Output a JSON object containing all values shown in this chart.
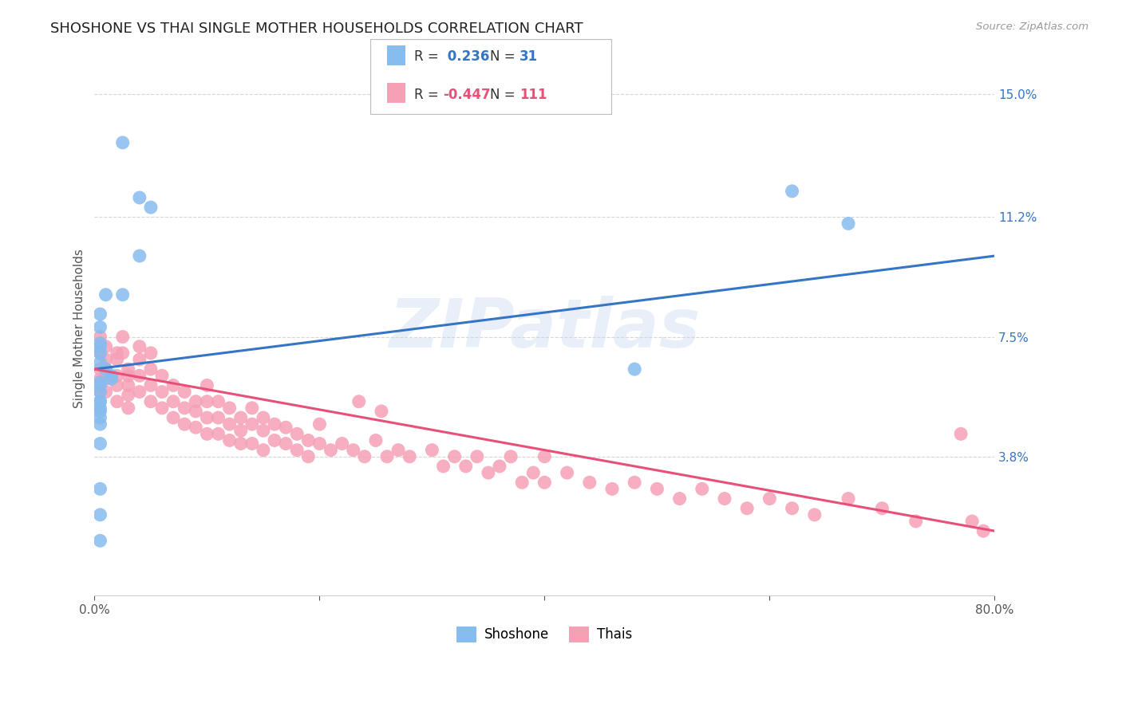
{
  "title": "SHOSHONE VS THAI SINGLE MOTHER HOUSEHOLDS CORRELATION CHART",
  "source": "Source: ZipAtlas.com",
  "ylabel": "Single Mother Households",
  "watermark": "ZIPatlas",
  "xlim": [
    0.0,
    0.8
  ],
  "ylim": [
    -0.005,
    0.16
  ],
  "xticks": [
    0.0,
    0.2,
    0.4,
    0.6,
    0.8
  ],
  "xtick_labels": [
    "0.0%",
    "",
    "",
    "",
    "80.0%"
  ],
  "ytick_positions": [
    0.038,
    0.075,
    0.112,
    0.15
  ],
  "ytick_labels": [
    "3.8%",
    "7.5%",
    "11.2%",
    "15.0%"
  ],
  "shoshone_color": "#87BCEE",
  "thai_color": "#F5A0B5",
  "shoshone_line_color": "#3575C5",
  "thai_line_color": "#E8507A",
  "shoshone_R": 0.236,
  "shoshone_N": 31,
  "thai_R": -0.447,
  "thai_N": 111,
  "background_color": "#FFFFFF",
  "grid_color": "#CCCCCC",
  "title_fontsize": 13,
  "axis_label_fontsize": 11,
  "tick_fontsize": 11,
  "legend_fontsize": 12,
  "blue_line_start_y": 0.065,
  "blue_line_end_y": 0.1,
  "pink_line_start_y": 0.065,
  "pink_line_end_y": 0.015,
  "shoshone_points_x": [
    0.025,
    0.04,
    0.05,
    0.04,
    0.025,
    0.01,
    0.005,
    0.005,
    0.005,
    0.005,
    0.005,
    0.005,
    0.01,
    0.015,
    0.015,
    0.005,
    0.005,
    0.005,
    0.005,
    0.005,
    0.005,
    0.005,
    0.005,
    0.005,
    0.005,
    0.62,
    0.67,
    0.005,
    0.005,
    0.48,
    0.005
  ],
  "shoshone_points_y": [
    0.135,
    0.118,
    0.115,
    0.1,
    0.088,
    0.088,
    0.082,
    0.078,
    0.073,
    0.072,
    0.07,
    0.067,
    0.065,
    0.063,
    0.062,
    0.061,
    0.06,
    0.058,
    0.055,
    0.053,
    0.052,
    0.05,
    0.042,
    0.028,
    0.02,
    0.12,
    0.11,
    0.055,
    0.048,
    0.065,
    0.012
  ],
  "thai_points_x": [
    0.005,
    0.005,
    0.005,
    0.005,
    0.005,
    0.01,
    0.01,
    0.01,
    0.01,
    0.01,
    0.02,
    0.02,
    0.02,
    0.02,
    0.02,
    0.025,
    0.025,
    0.03,
    0.03,
    0.03,
    0.03,
    0.03,
    0.04,
    0.04,
    0.04,
    0.04,
    0.05,
    0.05,
    0.05,
    0.05,
    0.06,
    0.06,
    0.06,
    0.07,
    0.07,
    0.07,
    0.08,
    0.08,
    0.08,
    0.09,
    0.09,
    0.09,
    0.1,
    0.1,
    0.1,
    0.1,
    0.11,
    0.11,
    0.11,
    0.12,
    0.12,
    0.12,
    0.13,
    0.13,
    0.13,
    0.14,
    0.14,
    0.14,
    0.15,
    0.15,
    0.15,
    0.16,
    0.16,
    0.17,
    0.17,
    0.18,
    0.18,
    0.19,
    0.19,
    0.2,
    0.2,
    0.21,
    0.22,
    0.23,
    0.235,
    0.24,
    0.25,
    0.255,
    0.26,
    0.27,
    0.28,
    0.3,
    0.31,
    0.32,
    0.33,
    0.34,
    0.35,
    0.36,
    0.37,
    0.38,
    0.39,
    0.4,
    0.4,
    0.42,
    0.44,
    0.46,
    0.48,
    0.5,
    0.52,
    0.54,
    0.56,
    0.58,
    0.6,
    0.62,
    0.64,
    0.67,
    0.7,
    0.73,
    0.77,
    0.78,
    0.79
  ],
  "thai_points_y": [
    0.075,
    0.07,
    0.065,
    0.062,
    0.058,
    0.072,
    0.068,
    0.065,
    0.062,
    0.058,
    0.07,
    0.068,
    0.063,
    0.06,
    0.055,
    0.075,
    0.07,
    0.065,
    0.063,
    0.06,
    0.057,
    0.053,
    0.072,
    0.068,
    0.063,
    0.058,
    0.07,
    0.065,
    0.06,
    0.055,
    0.063,
    0.058,
    0.053,
    0.06,
    0.055,
    0.05,
    0.058,
    0.053,
    0.048,
    0.055,
    0.052,
    0.047,
    0.06,
    0.055,
    0.05,
    0.045,
    0.055,
    0.05,
    0.045,
    0.053,
    0.048,
    0.043,
    0.05,
    0.046,
    0.042,
    0.053,
    0.048,
    0.042,
    0.05,
    0.046,
    0.04,
    0.048,
    0.043,
    0.047,
    0.042,
    0.045,
    0.04,
    0.043,
    0.038,
    0.048,
    0.042,
    0.04,
    0.042,
    0.04,
    0.055,
    0.038,
    0.043,
    0.052,
    0.038,
    0.04,
    0.038,
    0.04,
    0.035,
    0.038,
    0.035,
    0.038,
    0.033,
    0.035,
    0.038,
    0.03,
    0.033,
    0.038,
    0.03,
    0.033,
    0.03,
    0.028,
    0.03,
    0.028,
    0.025,
    0.028,
    0.025,
    0.022,
    0.025,
    0.022,
    0.02,
    0.025,
    0.022,
    0.018,
    0.045,
    0.018,
    0.015
  ]
}
